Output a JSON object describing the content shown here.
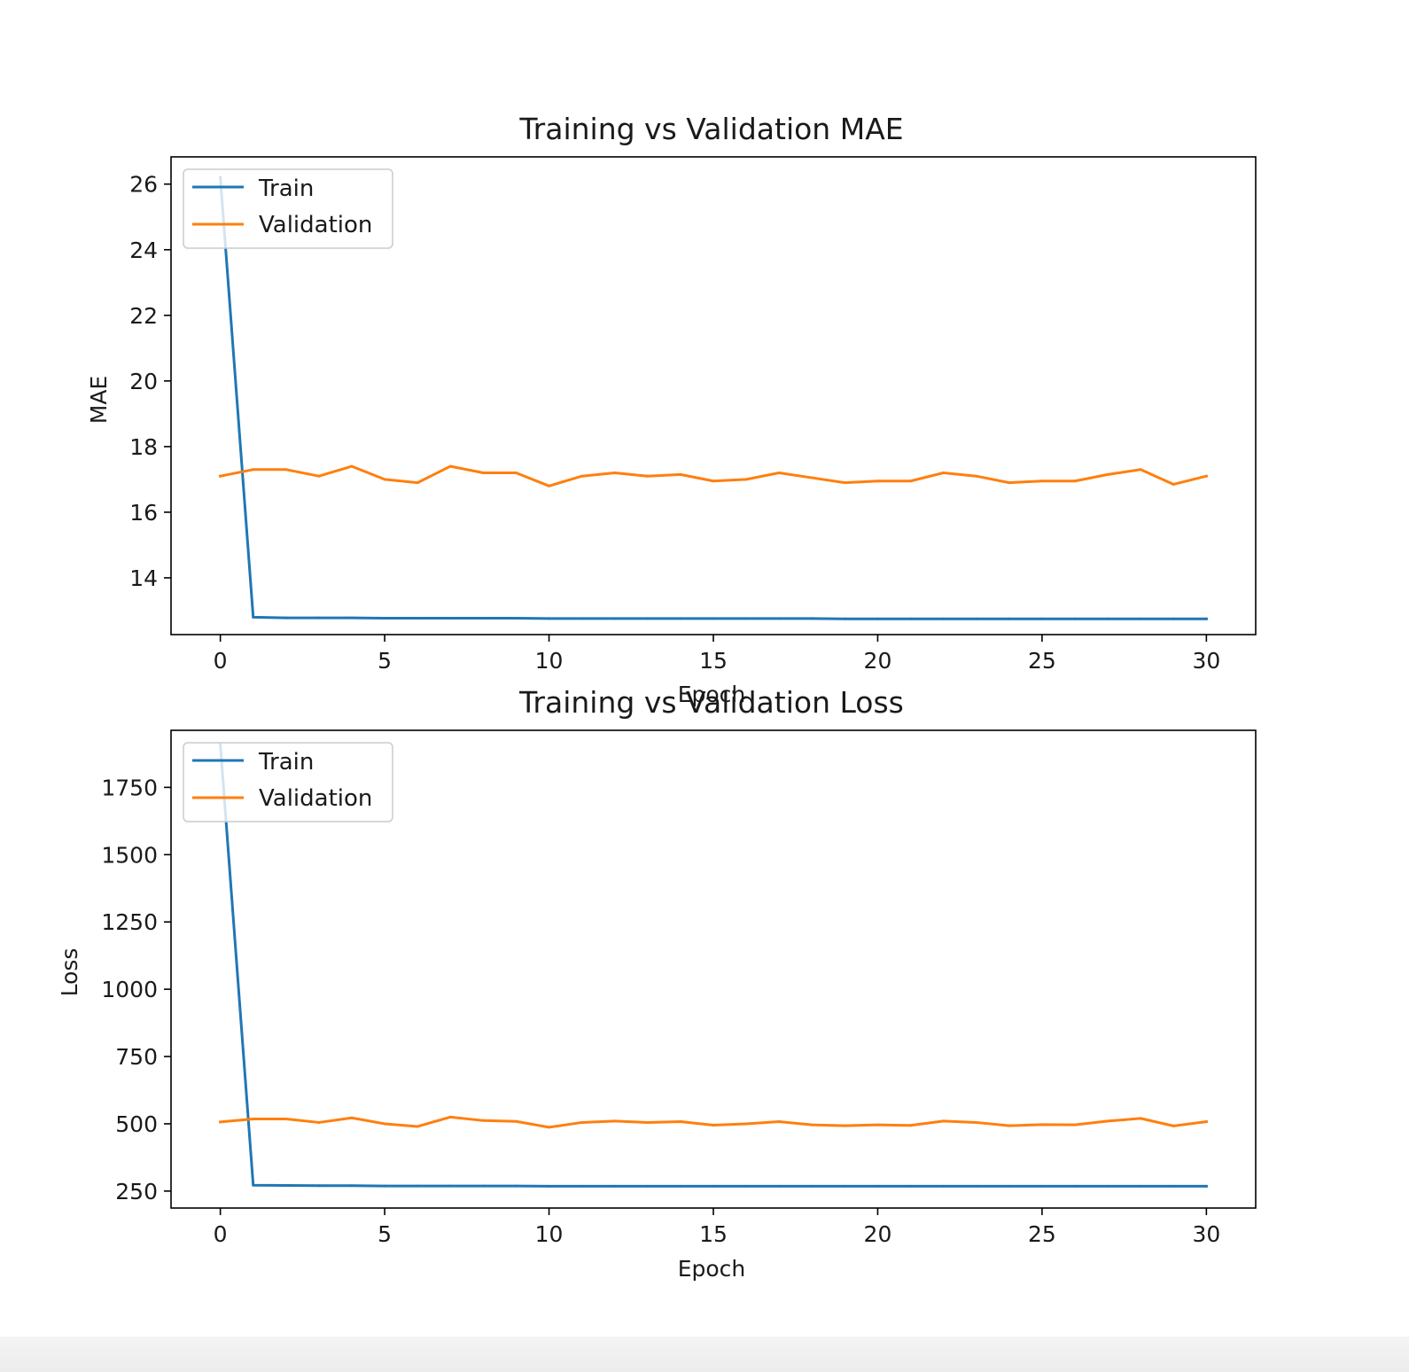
{
  "chart_data": [
    {
      "type": "line",
      "title": "Training vs Validation MAE",
      "xlabel": "Epoch",
      "ylabel": "MAE",
      "xlim": [
        -1.5,
        31.5
      ],
      "ylim": [
        12.27,
        26.83
      ],
      "xticks": [
        0,
        5,
        10,
        15,
        20,
        25,
        30
      ],
      "yticks": [
        14,
        16,
        18,
        20,
        22,
        24,
        26
      ],
      "grid": false,
      "legend": "upper left",
      "x": [
        0,
        1,
        2,
        3,
        4,
        5,
        6,
        7,
        8,
        9,
        10,
        11,
        12,
        13,
        14,
        15,
        16,
        17,
        18,
        19,
        20,
        21,
        22,
        23,
        24,
        25,
        26,
        27,
        28,
        29,
        30
      ],
      "series": [
        {
          "name": "Train",
          "color": "#1f77b4",
          "values": [
            26.2,
            12.8,
            12.78,
            12.78,
            12.78,
            12.77,
            12.77,
            12.77,
            12.77,
            12.77,
            12.76,
            12.76,
            12.76,
            12.76,
            12.76,
            12.76,
            12.76,
            12.76,
            12.76,
            12.75,
            12.75,
            12.75,
            12.75,
            12.75,
            12.75,
            12.75,
            12.75,
            12.75,
            12.75,
            12.75,
            12.75
          ]
        },
        {
          "name": "Validation",
          "color": "#ff7f0e",
          "values": [
            17.1,
            17.3,
            17.3,
            17.1,
            17.4,
            17.0,
            16.9,
            17.4,
            17.2,
            17.2,
            16.8,
            17.1,
            17.2,
            17.1,
            17.15,
            16.95,
            17.0,
            17.2,
            17.05,
            16.9,
            16.95,
            16.95,
            17.2,
            17.1,
            16.9,
            16.95,
            16.95,
            17.15,
            17.3,
            16.85,
            17.1
          ]
        }
      ]
    },
    {
      "type": "line",
      "title": "Training vs Validation Loss",
      "xlabel": "Epoch",
      "ylabel": "Loss",
      "xlim": [
        -1.5,
        31.5
      ],
      "ylim": [
        187,
        1962
      ],
      "xticks": [
        0,
        5,
        10,
        15,
        20,
        25,
        30
      ],
      "yticks": [
        250,
        500,
        750,
        1000,
        1250,
        1500,
        1750
      ],
      "grid": false,
      "legend": "upper left",
      "x": [
        0,
        1,
        2,
        3,
        4,
        5,
        6,
        7,
        8,
        9,
        10,
        11,
        12,
        13,
        14,
        15,
        16,
        17,
        18,
        19,
        20,
        21,
        22,
        23,
        24,
        25,
        26,
        27,
        28,
        29,
        30
      ],
      "series": [
        {
          "name": "Train",
          "color": "#1f77b4",
          "values": [
            1910,
            272,
            271,
            270,
            270,
            269,
            269,
            269,
            269,
            269,
            268,
            268,
            268,
            268,
            268,
            268,
            268,
            268,
            268,
            268,
            268,
            268,
            268,
            268,
            268,
            268,
            268,
            268,
            268,
            268,
            268
          ]
        },
        {
          "name": "Validation",
          "color": "#ff7f0e",
          "values": [
            507,
            518,
            518,
            505,
            522,
            500,
            490,
            525,
            512,
            509,
            487,
            505,
            510,
            505,
            508,
            495,
            500,
            508,
            496,
            493,
            496,
            494,
            510,
            505,
            493,
            497,
            496,
            510,
            520,
            492,
            508
          ]
        }
      ]
    }
  ]
}
